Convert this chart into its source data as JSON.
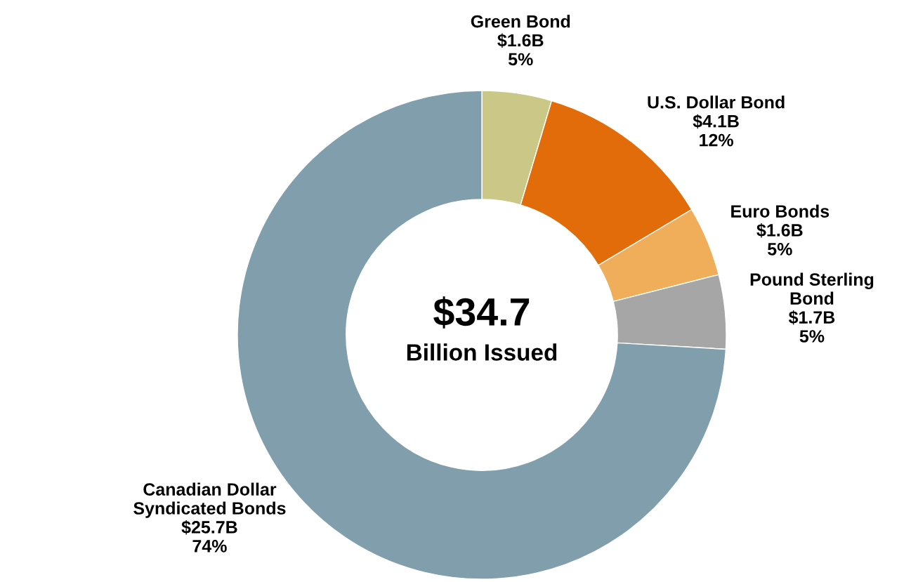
{
  "chart_data": {
    "type": "donut",
    "categories": [
      "Green Bond",
      "U.S. Dollar Bond",
      "Euro Bonds",
      "Pound Sterling\nBond",
      "Canadian Dollar\nSyndicated Bonds"
    ],
    "values": [
      1.6,
      4.1,
      1.6,
      1.7,
      25.7
    ],
    "colors": [
      "#cbc887",
      "#e36c0a",
      "#f0ad5a",
      "#a6a6a6",
      "#809eab"
    ],
    "value_labels": [
      "$1.6B",
      "$4.1B",
      "$1.6B",
      "$1.7B",
      "$25.7B"
    ],
    "annotations": [
      "$34.7",
      "Billion Issued",
      {
        "text": "5%",
        "x": "Green Bond"
      },
      {
        "text": "12%",
        "x": "U.S. Dollar Bond"
      },
      {
        "text": "5%",
        "x": "Euro Bonds"
      },
      {
        "text": "5%",
        "x": "Pound Sterling\nBond"
      },
      {
        "text": "74%",
        "x": "Canadian Dollar\nSyndicated Bonds"
      }
    ],
    "legend": false
  }
}
